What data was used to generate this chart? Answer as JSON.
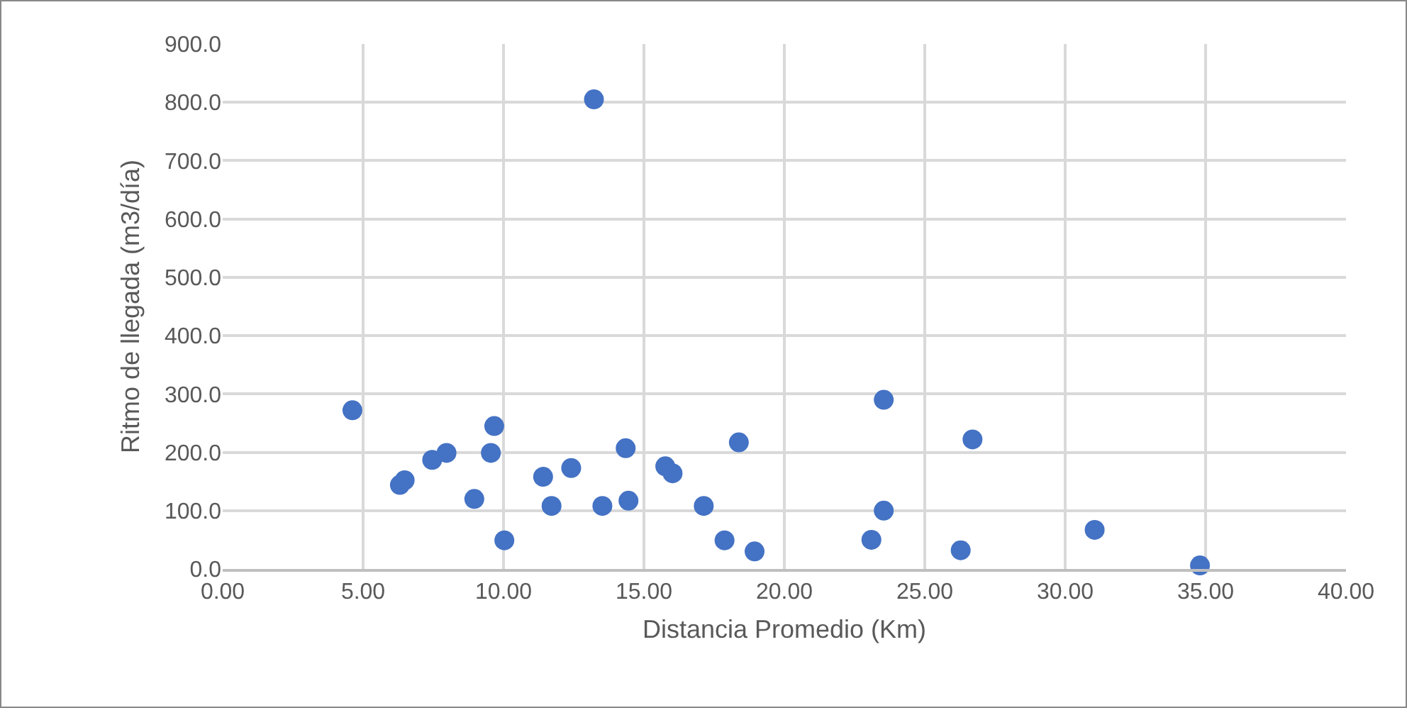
{
  "chart_data": {
    "type": "scatter",
    "xlabel": "Distancia Promedio (Km)",
    "ylabel": "Ritmo de llegada (m3/día)",
    "x": [
      4.62,
      6.31,
      6.48,
      7.46,
      7.97,
      8.96,
      9.67,
      9.55,
      10.03,
      11.41,
      11.71,
      12.41,
      13.52,
      14.35,
      14.45,
      15.76,
      16.02,
      17.13,
      17.87,
      18.38,
      18.94,
      23.1,
      23.54,
      23.54,
      26.28,
      26.7,
      31.05,
      34.8,
      13.22
    ],
    "series": [
      {
        "color": "#4472c4",
        "values": [
          272,
          144,
          152,
          187,
          199,
          120,
          245,
          199,
          49,
          158,
          108,
          173,
          108,
          207,
          117,
          176,
          164,
          108,
          49,
          217,
          30,
          50,
          290,
          100,
          32,
          222,
          67,
          6,
          805
        ]
      }
    ],
    "xlim": [
      0,
      40
    ],
    "xticks": [
      {
        "value": 0,
        "label": "0.00"
      },
      {
        "value": 5,
        "label": "5.00"
      },
      {
        "value": 10,
        "label": "10.00"
      },
      {
        "value": 15,
        "label": "15.00"
      },
      {
        "value": 20,
        "label": "20.00"
      },
      {
        "value": 25,
        "label": "25.00"
      },
      {
        "value": 30,
        "label": "30.00"
      },
      {
        "value": 35,
        "label": "35.00"
      },
      {
        "value": 40,
        "label": "40.00"
      }
    ],
    "ylim": [
      0,
      900
    ],
    "yticks": [
      {
        "value": 0,
        "label": "0.0"
      },
      {
        "value": 100,
        "label": "100.0"
      },
      {
        "value": 200,
        "label": "200.0"
      },
      {
        "value": 300,
        "label": "300.0"
      },
      {
        "value": 400,
        "label": "400.0"
      },
      {
        "value": 500,
        "label": "500.0"
      },
      {
        "value": 600,
        "label": "600.0"
      },
      {
        "value": 700,
        "label": "700.0"
      },
      {
        "value": 800,
        "label": "800.0"
      },
      {
        "value": 900,
        "label": "900.0"
      }
    ],
    "grid": true,
    "marker": "circle"
  }
}
